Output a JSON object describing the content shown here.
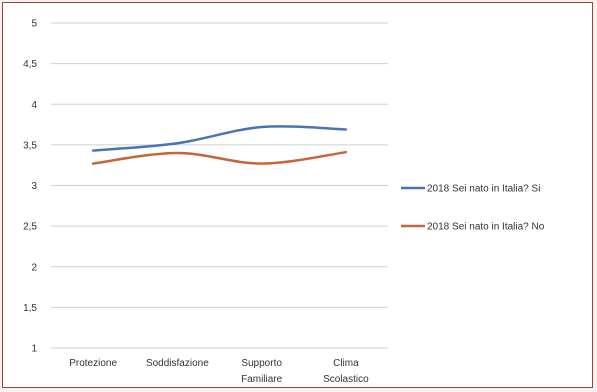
{
  "chart_data": {
    "type": "line",
    "title": "",
    "xlabel": "",
    "ylabel": "",
    "ylim": [
      1,
      5
    ],
    "yticks": [
      "1",
      "1,5",
      "2",
      "2,5",
      "3",
      "3,5",
      "4",
      "4,5",
      "5"
    ],
    "categories": [
      [
        "Protezione"
      ],
      [
        "Soddisfazione"
      ],
      [
        "Supporto",
        "Familiare"
      ],
      [
        "Clima",
        "Scolastico"
      ]
    ],
    "series": [
      {
        "name": "2018 Sei nato in Italia? Si",
        "color": "#4a73b5",
        "values": [
          3.43,
          3.52,
          3.72,
          3.69
        ]
      },
      {
        "name": "2018 Sei nato in Italia? No",
        "color": "#c9643a",
        "values": [
          3.27,
          3.4,
          3.27,
          3.41
        ]
      }
    ],
    "grid": true,
    "legend_position": "right"
  }
}
